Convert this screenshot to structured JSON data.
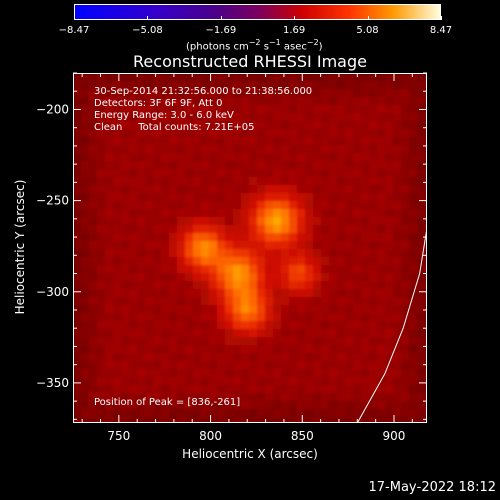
{
  "chart_data": {
    "type": "heatmap",
    "title": "Reconstructed RHESSI Image",
    "xlabel": "Heliocentric X (arcsec)",
    "ylabel": "Heliocentric Y (arcsec)",
    "xlim": [
      725,
      918
    ],
    "ylim": [
      -372,
      -180
    ],
    "xticks": [
      750,
      800,
      850,
      900
    ],
    "yticks": [
      -200,
      -250,
      -300,
      -350
    ],
    "ytick_labels": [
      "−200",
      "−250",
      "−300",
      "−350"
    ],
    "colorbar": {
      "min": -8.47,
      "max": 8.47,
      "tick_values": [
        -8.47,
        -5.08,
        -1.69,
        1.69,
        5.08,
        8.47
      ],
      "tick_labels": [
        "−8.47",
        "−5.08",
        "−1.69",
        "1.69",
        "5.08",
        "8.47"
      ],
      "unit_label": "(photons cm",
      "unit_sup1": "−2",
      "unit_mid": " s",
      "unit_sup2": "−1",
      "unit_mid2": " asec",
      "unit_sup3": "−2",
      "unit_end": ")"
    },
    "info_lines": [
      "30-Sep-2014 21:32:56.000 to 21:38:56.000",
      "Detectors: 3F 6F 9F, Att 0",
      "Energy Range: 3.0 - 6.0 keV",
      "Clean     Total counts: 7.21E+05"
    ],
    "peak_label": "Position of Peak = [836,-261]",
    "peak": [
      836,
      -261
    ],
    "sources": [
      {
        "x": 836,
        "y": -261,
        "amp": 1.0,
        "sigma": 9
      },
      {
        "x": 796,
        "y": -276,
        "amp": 0.88,
        "sigma": 8
      },
      {
        "x": 815,
        "y": -290,
        "amp": 0.92,
        "sigma": 9
      },
      {
        "x": 820,
        "y": -310,
        "amp": 0.78,
        "sigma": 8
      },
      {
        "x": 848,
        "y": -290,
        "amp": 0.55,
        "sigma": 7
      }
    ],
    "limb_curve": [
      [
        880,
        -372
      ],
      [
        895,
        -345
      ],
      [
        905,
        -320
      ],
      [
        914,
        -290
      ],
      [
        918,
        -265
      ]
    ]
  },
  "footer": {
    "timestamp": "17‑May‑2022 18:12"
  }
}
